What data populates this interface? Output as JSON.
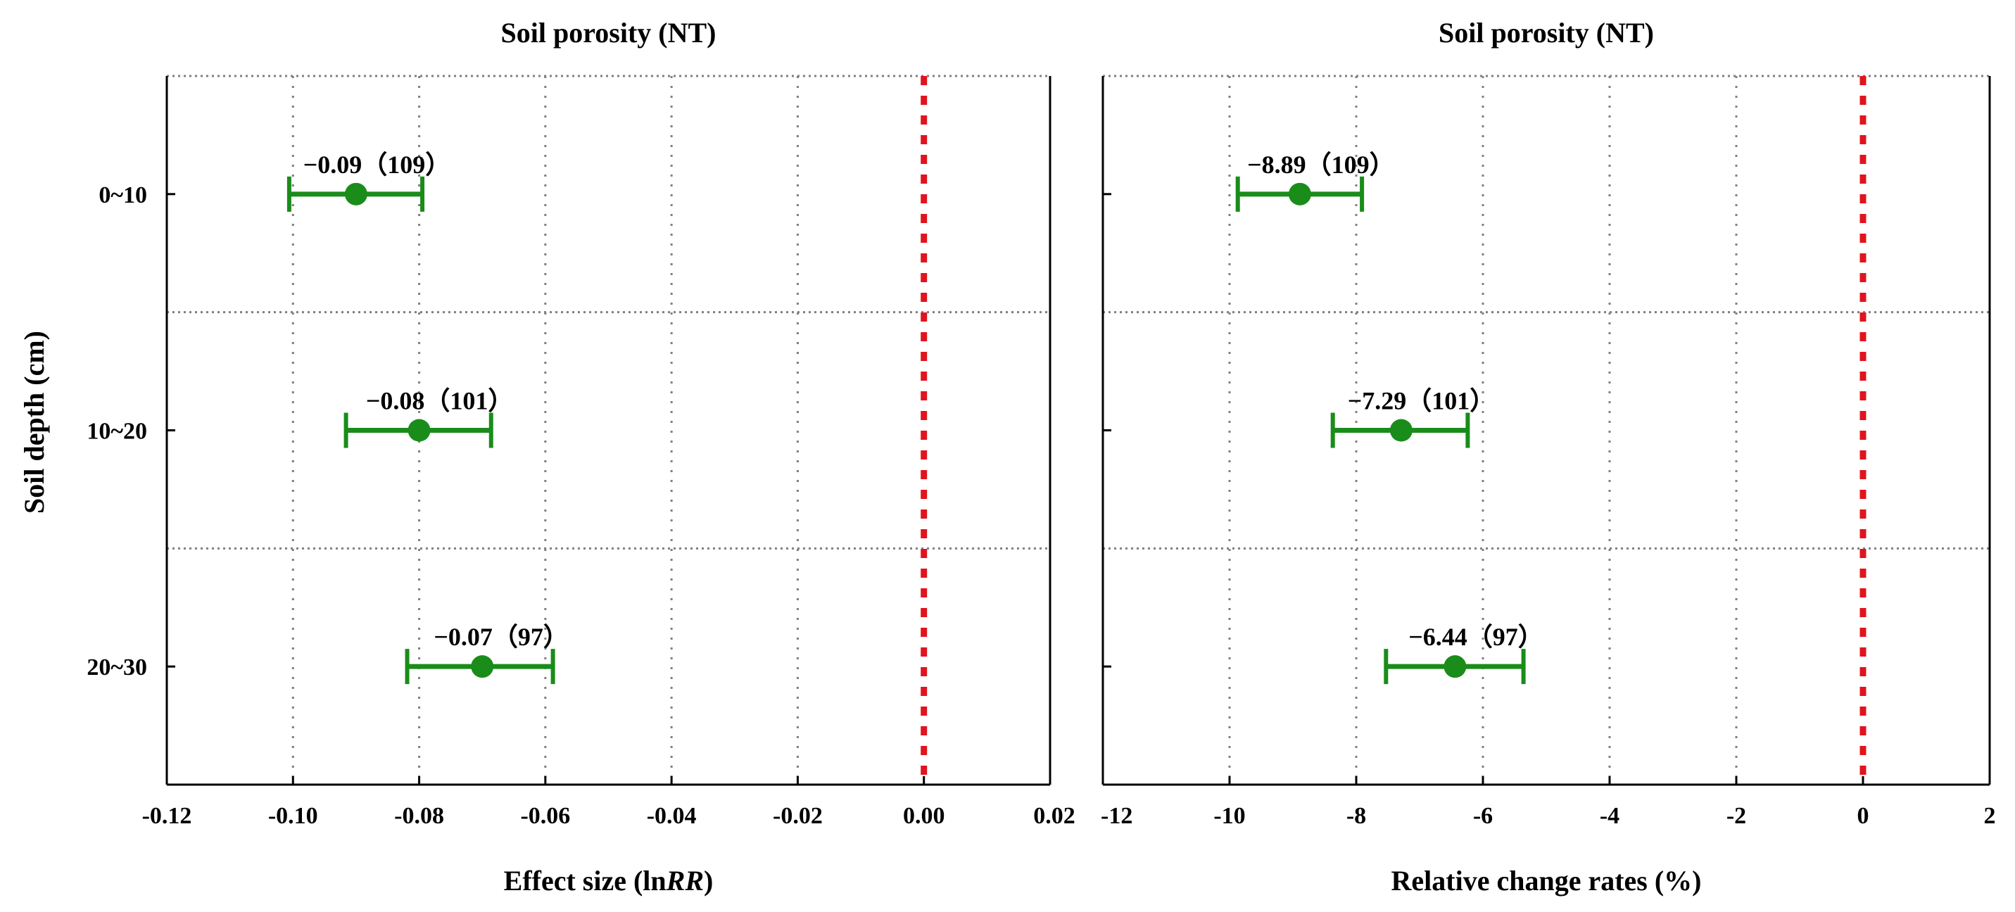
{
  "figure": {
    "ylabel": "Soil depth (cm)",
    "colors": {
      "point": "#1a8c1a",
      "zero_line": "#e0141e",
      "grid": "#7f7f7f",
      "axis": "#000000"
    }
  },
  "chart_data": [
    {
      "type": "scatter",
      "title": "Soil porosity (NT)",
      "xlabel_prefix": "Effect size (ln",
      "xlabel_italic": "RR",
      "xlabel_suffix": ")",
      "ylabel": "Soil depth (cm)",
      "categories": [
        "0~10",
        "10~20",
        "20~30"
      ],
      "xlim": [
        -0.12,
        0.02
      ],
      "xticks": [
        -0.12,
        -0.1,
        -0.08,
        -0.06,
        -0.04,
        -0.02,
        0.0,
        0.02
      ],
      "xtick_labels": [
        "-0.12",
        "-0.10",
        "-0.08",
        "-0.06",
        "-0.04",
        "-0.02",
        "0.00",
        "0.02"
      ],
      "zero_line": 0,
      "series": [
        {
          "name": "NT",
          "points": [
            {
              "category": "0~10",
              "value": -0.09,
              "ci_low": -0.1006,
              "ci_high": -0.0795,
              "n": 109,
              "label": "−0.09（109）"
            },
            {
              "category": "10~20",
              "value": -0.08,
              "ci_low": -0.0916,
              "ci_high": -0.0686,
              "n": 101,
              "label": "−0.08（101）"
            },
            {
              "category": "20~30",
              "value": -0.07,
              "ci_low": -0.0819,
              "ci_high": -0.0588,
              "n": 97,
              "label": "−0.07（97）"
            }
          ]
        }
      ]
    },
    {
      "type": "scatter",
      "title": "Soil porosity (NT)",
      "xlabel": "Relative change rates (%)",
      "categories": [
        "0~10",
        "10~20",
        "20~30"
      ],
      "xlim": [
        -12,
        2
      ],
      "xticks": [
        -12,
        -10,
        -8,
        -6,
        -4,
        -2,
        0,
        2
      ],
      "xtick_labels": [
        "-12",
        "-10",
        "-8",
        "-6",
        "-4",
        "-2",
        "0",
        "2"
      ],
      "zero_line": 0,
      "series": [
        {
          "name": "NT",
          "points": [
            {
              "category": "0~10",
              "value": -8.89,
              "ci_low": -9.87,
              "ci_high": -7.91,
              "n": 109,
              "label": "−8.89（109）"
            },
            {
              "category": "10~20",
              "value": -7.29,
              "ci_low": -8.37,
              "ci_high": -6.24,
              "n": 101,
              "label": "−7.29（101）"
            },
            {
              "category": "20~30",
              "value": -6.44,
              "ci_low": -7.53,
              "ci_high": -5.36,
              "n": 97,
              "label": "−6.44（97）"
            }
          ]
        }
      ]
    }
  ]
}
